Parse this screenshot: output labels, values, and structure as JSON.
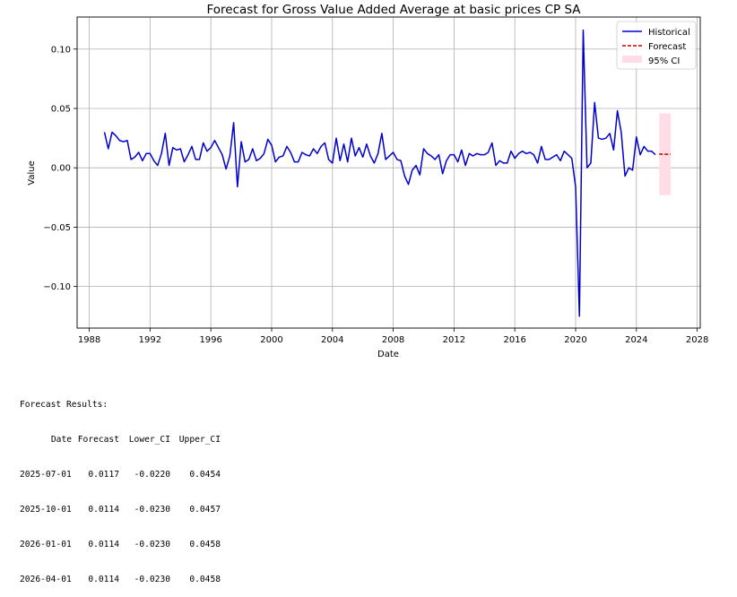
{
  "chart_data": {
    "type": "line",
    "title": "Forecast for Gross Value Added Average at basic prices CP SA",
    "xlabel": "Date",
    "ylabel": "Value",
    "xlim": [
      1987.2,
      2028.2
    ],
    "ylim": [
      -0.135,
      0.127
    ],
    "x_ticks": [
      1988,
      1992,
      1996,
      2000,
      2004,
      2008,
      2012,
      2016,
      2020,
      2024,
      2028
    ],
    "y_ticks": [
      -0.1,
      -0.05,
      0.0,
      0.05,
      0.1
    ],
    "y_tick_labels": [
      "−0.10",
      "−0.05",
      "0.00",
      "0.05",
      "0.10"
    ],
    "grid": true,
    "legend_position": "top-right",
    "colors": {
      "historical": "#0000cc",
      "forecast": "#cc0000",
      "ci": "#ffdde6"
    },
    "series": [
      {
        "name": "Historical",
        "x": [
          1989.0,
          1989.25,
          1989.5,
          1989.75,
          1990.0,
          1990.25,
          1990.5,
          1990.75,
          1991.0,
          1991.25,
          1991.5,
          1991.75,
          1992.0,
          1992.25,
          1992.5,
          1992.75,
          1993.0,
          1993.25,
          1993.5,
          1993.75,
          1994.0,
          1994.25,
          1994.5,
          1994.75,
          1995.0,
          1995.25,
          1995.5,
          1995.75,
          1996.0,
          1996.25,
          1996.5,
          1996.75,
          1997.0,
          1997.25,
          1997.5,
          1997.75,
          1998.0,
          1998.25,
          1998.5,
          1998.75,
          1999.0,
          1999.25,
          1999.5,
          1999.75,
          2000.0,
          2000.25,
          2000.5,
          2000.75,
          2001.0,
          2001.25,
          2001.5,
          2001.75,
          2002.0,
          2002.25,
          2002.5,
          2002.75,
          2003.0,
          2003.25,
          2003.5,
          2003.75,
          2004.0,
          2004.25,
          2004.5,
          2004.75,
          2005.0,
          2005.25,
          2005.5,
          2005.75,
          2006.0,
          2006.25,
          2006.5,
          2006.75,
          2007.0,
          2007.25,
          2007.5,
          2007.75,
          2008.0,
          2008.25,
          2008.5,
          2008.75,
          2009.0,
          2009.25,
          2009.5,
          2009.75,
          2010.0,
          2010.25,
          2010.5,
          2010.75,
          2011.0,
          2011.25,
          2011.5,
          2011.75,
          2012.0,
          2012.25,
          2012.5,
          2012.75,
          2013.0,
          2013.25,
          2013.5,
          2013.75,
          2014.0,
          2014.25,
          2014.5,
          2014.75,
          2015.0,
          2015.25,
          2015.5,
          2015.75,
          2016.0,
          2016.25,
          2016.5,
          2016.75,
          2017.0,
          2017.25,
          2017.5,
          2017.75,
          2018.0,
          2018.25,
          2018.5,
          2018.75,
          2019.0,
          2019.25,
          2019.5,
          2019.75,
          2020.0,
          2020.25,
          2020.5,
          2020.75,
          2021.0,
          2021.25,
          2021.5,
          2021.75,
          2022.0,
          2022.25,
          2022.5,
          2022.75,
          2023.0,
          2023.25,
          2023.5,
          2023.75,
          2024.0,
          2024.25,
          2024.5,
          2024.75,
          2025.0,
          2025.25
        ],
        "values": [
          0.03,
          0.016,
          0.03,
          0.027,
          0.023,
          0.022,
          0.023,
          0.007,
          0.009,
          0.013,
          0.006,
          0.012,
          0.012,
          0.006,
          0.002,
          0.012,
          0.029,
          0.002,
          0.017,
          0.015,
          0.016,
          0.005,
          0.011,
          0.018,
          0.007,
          0.007,
          0.021,
          0.014,
          0.017,
          0.023,
          0.017,
          0.011,
          -0.001,
          0.01,
          0.038,
          -0.016,
          0.022,
          0.005,
          0.007,
          0.016,
          0.006,
          0.008,
          0.012,
          0.024,
          0.019,
          0.005,
          0.009,
          0.01,
          0.018,
          0.013,
          0.005,
          0.005,
          0.013,
          0.011,
          0.01,
          0.016,
          0.012,
          0.018,
          0.021,
          0.007,
          0.004,
          0.025,
          0.006,
          0.02,
          0.005,
          0.025,
          0.01,
          0.017,
          0.009,
          0.02,
          0.01,
          0.004,
          0.012,
          0.029,
          0.007,
          0.01,
          0.013,
          0.007,
          0.006,
          -0.007,
          -0.014,
          -0.002,
          0.002,
          -0.006,
          0.016,
          0.012,
          0.01,
          0.007,
          0.011,
          -0.005,
          0.006,
          0.011,
          0.011,
          0.005,
          0.015,
          0.002,
          0.012,
          0.01,
          0.012,
          0.011,
          0.011,
          0.013,
          0.021,
          0.002,
          0.006,
          0.004,
          0.004,
          0.014,
          0.008,
          0.012,
          0.014,
          0.012,
          0.013,
          0.011,
          0.004,
          0.018,
          0.007,
          0.007,
          0.009,
          0.011,
          0.006,
          0.014,
          0.011,
          0.008,
          -0.016,
          -0.125,
          0.116,
          0.0,
          0.004,
          0.055,
          0.025,
          0.024,
          0.025,
          0.029,
          0.015,
          0.048,
          0.03,
          -0.007,
          0.0,
          -0.002,
          0.026,
          0.011,
          0.018,
          0.014,
          0.014,
          0.011
        ]
      },
      {
        "name": "Forecast",
        "x": [
          2025.5,
          2025.75,
          2026.0,
          2026.25
        ],
        "values": [
          0.0117,
          0.0114,
          0.0114,
          0.0114
        ]
      },
      {
        "name": "95% CI",
        "x": [
          2025.5,
          2025.75,
          2026.0,
          2026.25
        ],
        "lower": [
          -0.022,
          -0.023,
          -0.023,
          -0.023
        ],
        "upper": [
          0.0454,
          0.0457,
          0.0458,
          0.0458
        ]
      }
    ]
  },
  "results": {
    "title": "Forecast Results:",
    "columns": [
      "Date",
      "Forecast",
      "Lower_CI",
      "Upper_CI"
    ],
    "rows": [
      [
        "2025-07-01",
        "0.0117",
        "-0.0220",
        "0.0454"
      ],
      [
        "2025-10-01",
        "0.0114",
        "-0.0230",
        "0.0457"
      ],
      [
        "2026-01-01",
        "0.0114",
        "-0.0230",
        "0.0458"
      ],
      [
        "2026-04-01",
        "0.0114",
        "-0.0230",
        "0.0458"
      ]
    ]
  }
}
